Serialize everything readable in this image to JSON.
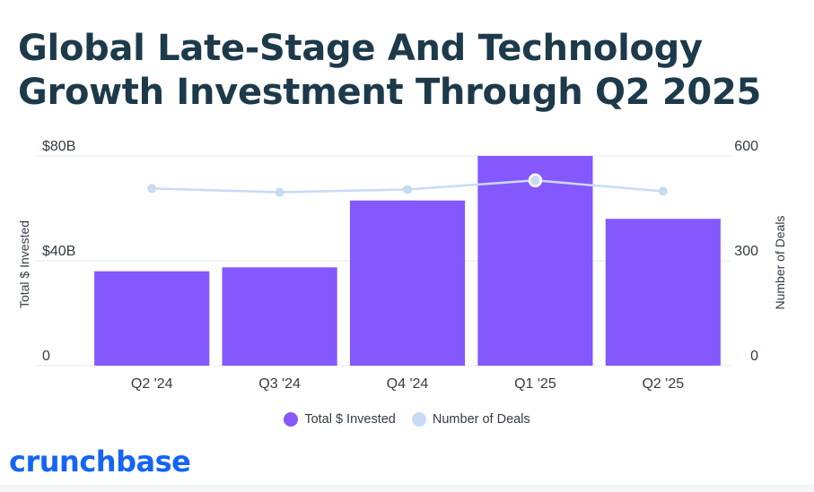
{
  "title": "Global Late-Stage And Technology Growth Investment Through Q2 2025",
  "brand": "crunchbase",
  "colors": {
    "bar": "#8458fd",
    "line": "#c8dbf5",
    "title": "#1d3a4b",
    "brand": "#1464f6"
  },
  "chart_data": {
    "type": "bar",
    "categories": [
      "Q2 '24",
      "Q3 '24",
      "Q4 '24",
      "Q1 '25",
      "Q2 '25"
    ],
    "series": [
      {
        "name": "Total $ Invested",
        "type": "bar",
        "axis": "left",
        "values": [
          36,
          37.5,
          63,
          80,
          56
        ]
      },
      {
        "name": "Number of Deals",
        "type": "line",
        "axis": "right",
        "values": [
          507,
          496,
          504,
          530,
          499
        ]
      }
    ],
    "ylabel": "Total $ Invested",
    "y2label": "Number of Deals",
    "ylim": [
      0,
      80
    ],
    "y2lim": [
      0,
      600
    ],
    "yticks": [
      {
        "value": 0,
        "label": "0"
      },
      {
        "value": 40,
        "label": "$40B"
      },
      {
        "value": 80,
        "label": "$80B"
      }
    ],
    "y2ticks": [
      {
        "value": 0,
        "label": "0"
      },
      {
        "value": 300,
        "label": "300"
      },
      {
        "value": 600,
        "label": "600"
      }
    ],
    "highlighted_point": "Q1 '25",
    "grid": true,
    "legend": "bottom-center"
  }
}
